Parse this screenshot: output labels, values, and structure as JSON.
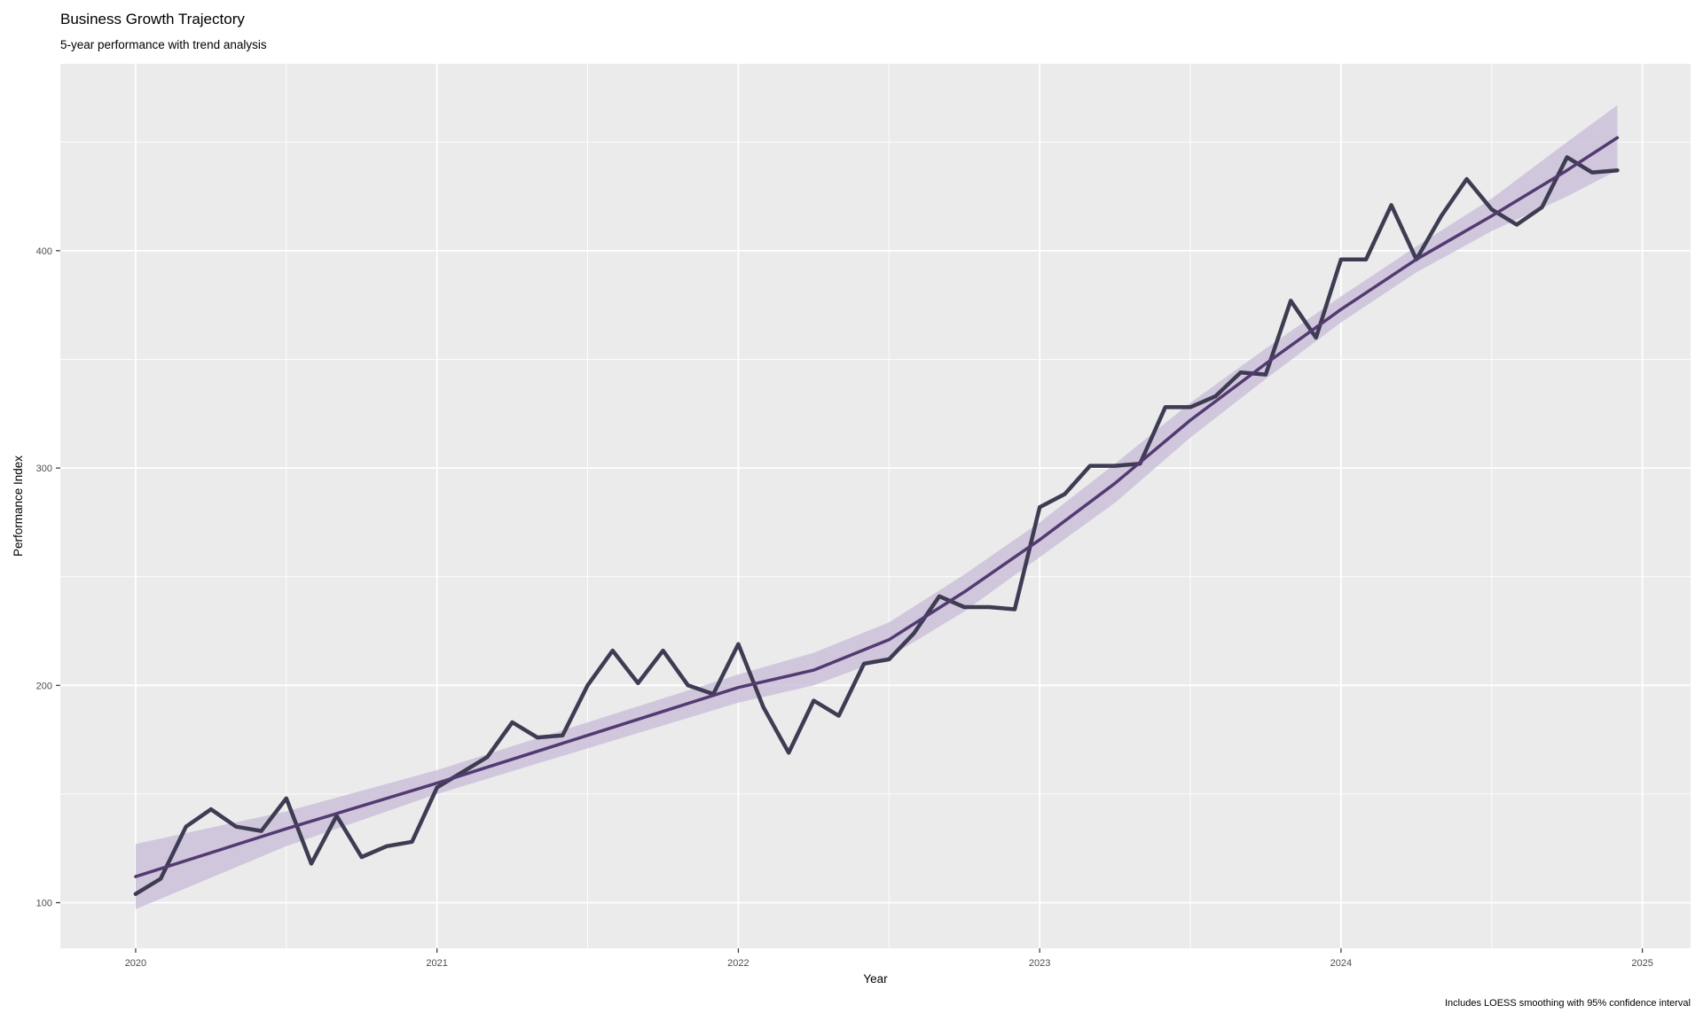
{
  "chart_data": {
    "type": "line",
    "title": "Business Growth Trajectory",
    "subtitle": "5-year performance with trend analysis",
    "xlabel": "Year",
    "ylabel": "Performance Index",
    "caption": "Includes LOESS smoothing with 95% confidence interval",
    "xlim": [
      2019.75,
      2025.16
    ],
    "ylim": [
      79,
      486
    ],
    "x_ticks": [
      2020,
      2021,
      2022,
      2023,
      2024,
      2025
    ],
    "x_tick_labels": [
      "2020",
      "2021",
      "2022",
      "2023",
      "2024",
      "2025"
    ],
    "y_ticks": [
      100,
      200,
      300,
      400
    ],
    "y_tick_labels": [
      "100",
      "200",
      "300",
      "400"
    ],
    "grid": true,
    "legend": "none",
    "colors": {
      "panel_background": "#EBEBEB",
      "grid_line": "#FFFFFF",
      "series_line": "#3E3C52",
      "trend_line": "#533A71",
      "confidence_band": "#C9BED9"
    },
    "series": [
      {
        "x": [
          2020.0,
          2020.083,
          2020.167,
          2020.25,
          2020.333,
          2020.417,
          2020.5,
          2020.583,
          2020.667,
          2020.75,
          2020.833,
          2020.917,
          2021.0,
          2021.083,
          2021.167,
          2021.25,
          2021.333,
          2021.417,
          2021.5,
          2021.583,
          2021.667,
          2021.75,
          2021.833,
          2021.917,
          2022.0,
          2022.083,
          2022.167,
          2022.25,
          2022.333,
          2022.417,
          2022.5,
          2022.583,
          2022.667,
          2022.75,
          2022.833,
          2022.917,
          2023.0,
          2023.083,
          2023.167,
          2023.25,
          2023.333,
          2023.417,
          2023.5,
          2023.583,
          2023.667,
          2023.75,
          2023.833,
          2023.917,
          2024.0,
          2024.083,
          2024.167,
          2024.25,
          2024.333,
          2024.417,
          2024.5,
          2024.583,
          2024.667,
          2024.75,
          2024.833,
          2024.917
        ],
        "values": [
          104,
          111,
          135,
          143,
          135,
          133,
          148,
          118,
          140,
          121,
          126,
          128,
          153,
          160,
          167,
          183,
          176,
          177,
          200,
          216,
          201,
          216,
          200,
          196,
          219,
          190,
          169,
          193,
          186,
          210,
          212,
          224,
          241,
          236,
          236,
          235,
          282,
          288,
          301,
          301,
          302,
          328,
          328,
          333,
          344,
          343,
          377,
          360,
          396,
          396,
          421,
          396,
          416,
          433,
          419,
          412,
          420,
          443,
          436,
          437
        ]
      }
    ],
    "trend": {
      "x": [
        2020.0,
        2020.5,
        2021.0,
        2021.5,
        2022.0,
        2022.25,
        2022.5,
        2022.75,
        2023.0,
        2023.25,
        2023.5,
        2023.75,
        2024.0,
        2024.25,
        2024.5,
        2024.75,
        2024.917
      ],
      "values": [
        112,
        134,
        155,
        177,
        199,
        207,
        221,
        243,
        267,
        293,
        322,
        348,
        373,
        396,
        416,
        437,
        452
      ],
      "lower": [
        97,
        126,
        150,
        171,
        192,
        200,
        213,
        234,
        259,
        284,
        314,
        341,
        367,
        390,
        409,
        425,
        437
      ],
      "upper": [
        127,
        142,
        161,
        183,
        205,
        215,
        229,
        251,
        275,
        302,
        330,
        355,
        379,
        402,
        424,
        450,
        467
      ]
    }
  }
}
